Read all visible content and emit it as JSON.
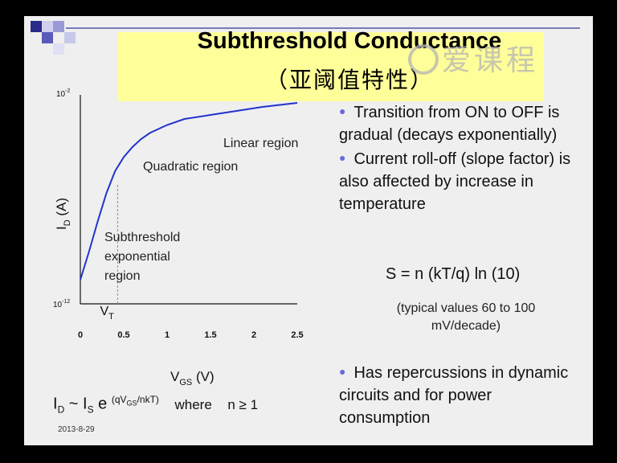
{
  "slide": {
    "title": "Subthreshold Conductance",
    "subtitle": "（亚阈值特性）",
    "watermark": "爱课程",
    "date": "2013-8-29"
  },
  "bullets": [
    {
      "text": "Transition from ON to OFF is gradual (decays exponentially)"
    },
    {
      "text": "Current roll-off (slope factor) is also affected by increase in temperature"
    }
  ],
  "formula": {
    "main": "S = n (kT/q) ln (10)",
    "note": "(typical values 60 to 100 mV/decade)"
  },
  "bullet3": "Has repercussions in dynamic circuits and for power consumption",
  "equation": {
    "lhs": "I",
    "lhs_sub": "D",
    "mid": " ~ I",
    "mid_sub": "S",
    "e": " e ",
    "exp": "(qV",
    "exp_sub": "GS",
    "exp_tail": "/nkT)",
    "where": "where",
    "cond": "n ≥ 1"
  },
  "chart_data": {
    "type": "line",
    "x": [
      0,
      0.1,
      0.2,
      0.3,
      0.4,
      0.5,
      0.6,
      0.7,
      0.8,
      1.0,
      1.2,
      1.5,
      1.8,
      2.1,
      2.5
    ],
    "y": [
      0.12,
      0.26,
      0.41,
      0.55,
      0.66,
      0.73,
      0.78,
      0.82,
      0.85,
      0.89,
      0.92,
      0.94,
      0.96,
      0.98,
      1.0
    ],
    "xlabel_main": "V",
    "xlabel_sub": "GS",
    "xlabel_unit": " (V)",
    "ylabel_main": "I",
    "ylabel_sub": "D",
    "ylabel_unit": " (A)",
    "xticks": [
      "0",
      "0.5",
      "1",
      "1.5",
      "2",
      "2.5"
    ],
    "xtick_values": [
      0,
      0.5,
      1,
      1.5,
      2,
      2.5
    ],
    "xlim": [
      0,
      2.5
    ],
    "ytop_label_base": "10",
    "ytop_label_exp": "-2",
    "ybottom_label_base": "10",
    "ybottom_label_exp": "-12",
    "vt_label_main": "V",
    "vt_label_sub": "T",
    "vt_value": 0.43,
    "annotations": [
      "Linear region",
      "Quadratic region",
      "Subthreshold",
      "exponential",
      "region"
    ],
    "line_color": "#2233cc"
  }
}
